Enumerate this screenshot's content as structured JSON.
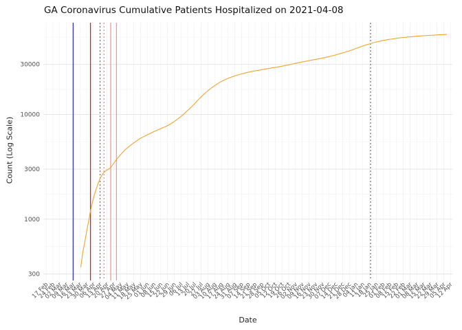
{
  "chart_data": {
    "type": "line",
    "title": "GA Coronavirus Cumulative Patients Hospitalized on 2021-04-08",
    "xlabel": "Date",
    "ylabel": "Count (Log Scale)",
    "y_scale": "log10",
    "ylim": [
      260,
      75000
    ],
    "y_ticks": [
      300,
      1000,
      3000,
      10000,
      30000
    ],
    "y_minor_ticks": [
      548,
      1732,
      5477,
      17321,
      54772
    ],
    "x_domain": [
      "2020-02-14",
      "2021-04-14"
    ],
    "x_ticks": {
      "start_date": "2020-02-17",
      "interval_days": 7,
      "labels": [
        "17 Feb",
        "24 Feb",
        "02 Mar",
        "09 Mar",
        "16 Mar",
        "23 Mar",
        "30 Mar",
        "06 Apr",
        "13 Apr",
        "20 Apr",
        "27 Apr",
        "04 May",
        "11 May",
        "18 May",
        "25 May",
        "01 Jun",
        "08 Jun",
        "15 Jun",
        "22 Jun",
        "29 Jun",
        "06 Jul",
        "13 Jul",
        "20 Jul",
        "27 Jul",
        "03 Aug",
        "10 Aug",
        "17 Aug",
        "24 Aug",
        "31 Aug",
        "07 Sep",
        "14 Sep",
        "21 Sep",
        "28 Sep",
        "05 Oct",
        "12 Oct",
        "19 Oct",
        "26 Oct",
        "02 Nov",
        "09 Nov",
        "16 Nov",
        "23 Nov",
        "30 Nov",
        "07 Dec",
        "14 Dec",
        "21 Dec",
        "28 Dec",
        "04 Jan",
        "11 Jan",
        "18 Jan",
        "25 Jan",
        "01 Feb",
        "08 Feb",
        "15 Feb",
        "22 Feb",
        "01 Mar",
        "08 Mar",
        "15 Mar",
        "22 Mar",
        "29 Mar",
        "05 Apr",
        "12 Apr"
      ]
    },
    "grid": true,
    "legend": "none",
    "colors": {
      "line": "#EFA431",
      "grid_major": "#E3E3E3",
      "grid_minor": "#F2F2F2",
      "grid_vertical": "#EDEDED",
      "axis_text": "#4D4D4D",
      "background": "#FFFFFF"
    },
    "vlines": [
      {
        "date": "2020-03-16",
        "color": "#3333CC",
        "style": "solid"
      },
      {
        "date": "2020-04-03",
        "color": "#CC2222",
        "style": "solid"
      },
      {
        "date": "2020-04-13",
        "color": "#CC2222",
        "style": "dotted"
      },
      {
        "date": "2020-04-17",
        "color": "#E06666",
        "style": "dotted"
      },
      {
        "date": "2020-04-24",
        "color": "#EE9999",
        "style": "solid"
      },
      {
        "date": "2020-04-30",
        "color": "#EE9999",
        "style": "solid"
      },
      {
        "date": "2021-01-19",
        "color": "#44446A",
        "style": "dotted"
      }
    ],
    "series": [
      {
        "name": "Cumulative Patients Hospitalized",
        "color": "#EFA431",
        "points": [
          [
            "2020-03-24",
            350
          ],
          [
            "2020-03-26",
            480
          ],
          [
            "2020-03-28",
            600
          ],
          [
            "2020-03-30",
            760
          ],
          [
            "2020-04-01",
            950
          ],
          [
            "2020-04-03",
            1200
          ],
          [
            "2020-04-05",
            1450
          ],
          [
            "2020-04-07",
            1700
          ],
          [
            "2020-04-09",
            1950
          ],
          [
            "2020-04-11",
            2200
          ],
          [
            "2020-04-13",
            2450
          ],
          [
            "2020-04-15",
            2650
          ],
          [
            "2020-04-17",
            2800
          ],
          [
            "2020-04-19",
            2900
          ],
          [
            "2020-04-21",
            2980
          ],
          [
            "2020-04-24",
            3100
          ],
          [
            "2020-04-27",
            3400
          ],
          [
            "2020-04-30",
            3700
          ],
          [
            "2020-05-03",
            4000
          ],
          [
            "2020-05-06",
            4300
          ],
          [
            "2020-05-09",
            4600
          ],
          [
            "2020-05-12",
            4850
          ],
          [
            "2020-05-15",
            5100
          ],
          [
            "2020-05-18",
            5350
          ],
          [
            "2020-05-21",
            5600
          ],
          [
            "2020-05-24",
            5850
          ],
          [
            "2020-05-27",
            6050
          ],
          [
            "2020-05-30",
            6250
          ],
          [
            "2020-06-02",
            6450
          ],
          [
            "2020-06-05",
            6650
          ],
          [
            "2020-06-08",
            6850
          ],
          [
            "2020-06-11",
            7050
          ],
          [
            "2020-06-14",
            7250
          ],
          [
            "2020-06-17",
            7450
          ],
          [
            "2020-06-20",
            7650
          ],
          [
            "2020-06-23",
            7900
          ],
          [
            "2020-06-26",
            8200
          ],
          [
            "2020-06-29",
            8550
          ],
          [
            "2020-07-02",
            8950
          ],
          [
            "2020-07-05",
            9400
          ],
          [
            "2020-07-08",
            9900
          ],
          [
            "2020-07-11",
            10500
          ],
          [
            "2020-07-14",
            11100
          ],
          [
            "2020-07-17",
            11800
          ],
          [
            "2020-07-20",
            12600
          ],
          [
            "2020-07-23",
            13500
          ],
          [
            "2020-07-26",
            14400
          ],
          [
            "2020-07-29",
            15300
          ],
          [
            "2020-08-01",
            16200
          ],
          [
            "2020-08-04",
            17100
          ],
          [
            "2020-08-07",
            18000
          ],
          [
            "2020-08-10",
            18800
          ],
          [
            "2020-08-13",
            19600
          ],
          [
            "2020-08-16",
            20400
          ],
          [
            "2020-08-19",
            21100
          ],
          [
            "2020-08-22",
            21700
          ],
          [
            "2020-08-25",
            22300
          ],
          [
            "2020-08-28",
            22800
          ],
          [
            "2020-08-31",
            23300
          ],
          [
            "2020-09-03",
            23800
          ],
          [
            "2020-09-06",
            24200
          ],
          [
            "2020-09-09",
            24600
          ],
          [
            "2020-09-12",
            25000
          ],
          [
            "2020-09-15",
            25400
          ],
          [
            "2020-09-18",
            25700
          ],
          [
            "2020-09-21",
            26000
          ],
          [
            "2020-09-24",
            26300
          ],
          [
            "2020-09-27",
            26600
          ],
          [
            "2020-09-30",
            26900
          ],
          [
            "2020-10-03",
            27200
          ],
          [
            "2020-10-06",
            27500
          ],
          [
            "2020-10-09",
            27800
          ],
          [
            "2020-10-12",
            28100
          ],
          [
            "2020-10-15",
            28400
          ],
          [
            "2020-10-18",
            28700
          ],
          [
            "2020-10-21",
            29100
          ],
          [
            "2020-10-24",
            29500
          ],
          [
            "2020-10-27",
            29900
          ],
          [
            "2020-10-30",
            30300
          ],
          [
            "2020-11-02",
            30700
          ],
          [
            "2020-11-05",
            31100
          ],
          [
            "2020-11-08",
            31500
          ],
          [
            "2020-11-11",
            31900
          ],
          [
            "2020-11-14",
            32300
          ],
          [
            "2020-11-17",
            32700
          ],
          [
            "2020-11-20",
            33100
          ],
          [
            "2020-11-23",
            33500
          ],
          [
            "2020-11-26",
            33900
          ],
          [
            "2020-11-29",
            34300
          ],
          [
            "2020-12-02",
            34800
          ],
          [
            "2020-12-05",
            35300
          ],
          [
            "2020-12-08",
            35800
          ],
          [
            "2020-12-11",
            36400
          ],
          [
            "2020-12-14",
            37000
          ],
          [
            "2020-12-17",
            37700
          ],
          [
            "2020-12-20",
            38400
          ],
          [
            "2020-12-23",
            39100
          ],
          [
            "2020-12-26",
            39900
          ],
          [
            "2020-12-29",
            40700
          ],
          [
            "2021-01-01",
            41600
          ],
          [
            "2021-01-04",
            42600
          ],
          [
            "2021-01-07",
            43600
          ],
          [
            "2021-01-10",
            44600
          ],
          [
            "2021-01-13",
            45600
          ],
          [
            "2021-01-16",
            46500
          ],
          [
            "2021-01-19",
            47400
          ],
          [
            "2021-01-22",
            48300
          ],
          [
            "2021-01-25",
            49100
          ],
          [
            "2021-01-28",
            49800
          ],
          [
            "2021-01-31",
            50500
          ],
          [
            "2021-02-03",
            51100
          ],
          [
            "2021-02-06",
            51700
          ],
          [
            "2021-02-09",
            52200
          ],
          [
            "2021-02-12",
            52700
          ],
          [
            "2021-02-15",
            53200
          ],
          [
            "2021-02-18",
            53600
          ],
          [
            "2021-02-21",
            54000
          ],
          [
            "2021-02-24",
            54400
          ],
          [
            "2021-02-27",
            54800
          ],
          [
            "2021-03-02",
            55100
          ],
          [
            "2021-03-05",
            55400
          ],
          [
            "2021-03-08",
            55700
          ],
          [
            "2021-03-11",
            56000
          ],
          [
            "2021-03-14",
            56300
          ],
          [
            "2021-03-17",
            56500
          ],
          [
            "2021-03-20",
            56700
          ],
          [
            "2021-03-23",
            56900
          ],
          [
            "2021-03-26",
            57100
          ],
          [
            "2021-03-29",
            57300
          ],
          [
            "2021-04-01",
            57500
          ],
          [
            "2021-04-04",
            57700
          ],
          [
            "2021-04-08",
            57900
          ]
        ]
      }
    ]
  }
}
